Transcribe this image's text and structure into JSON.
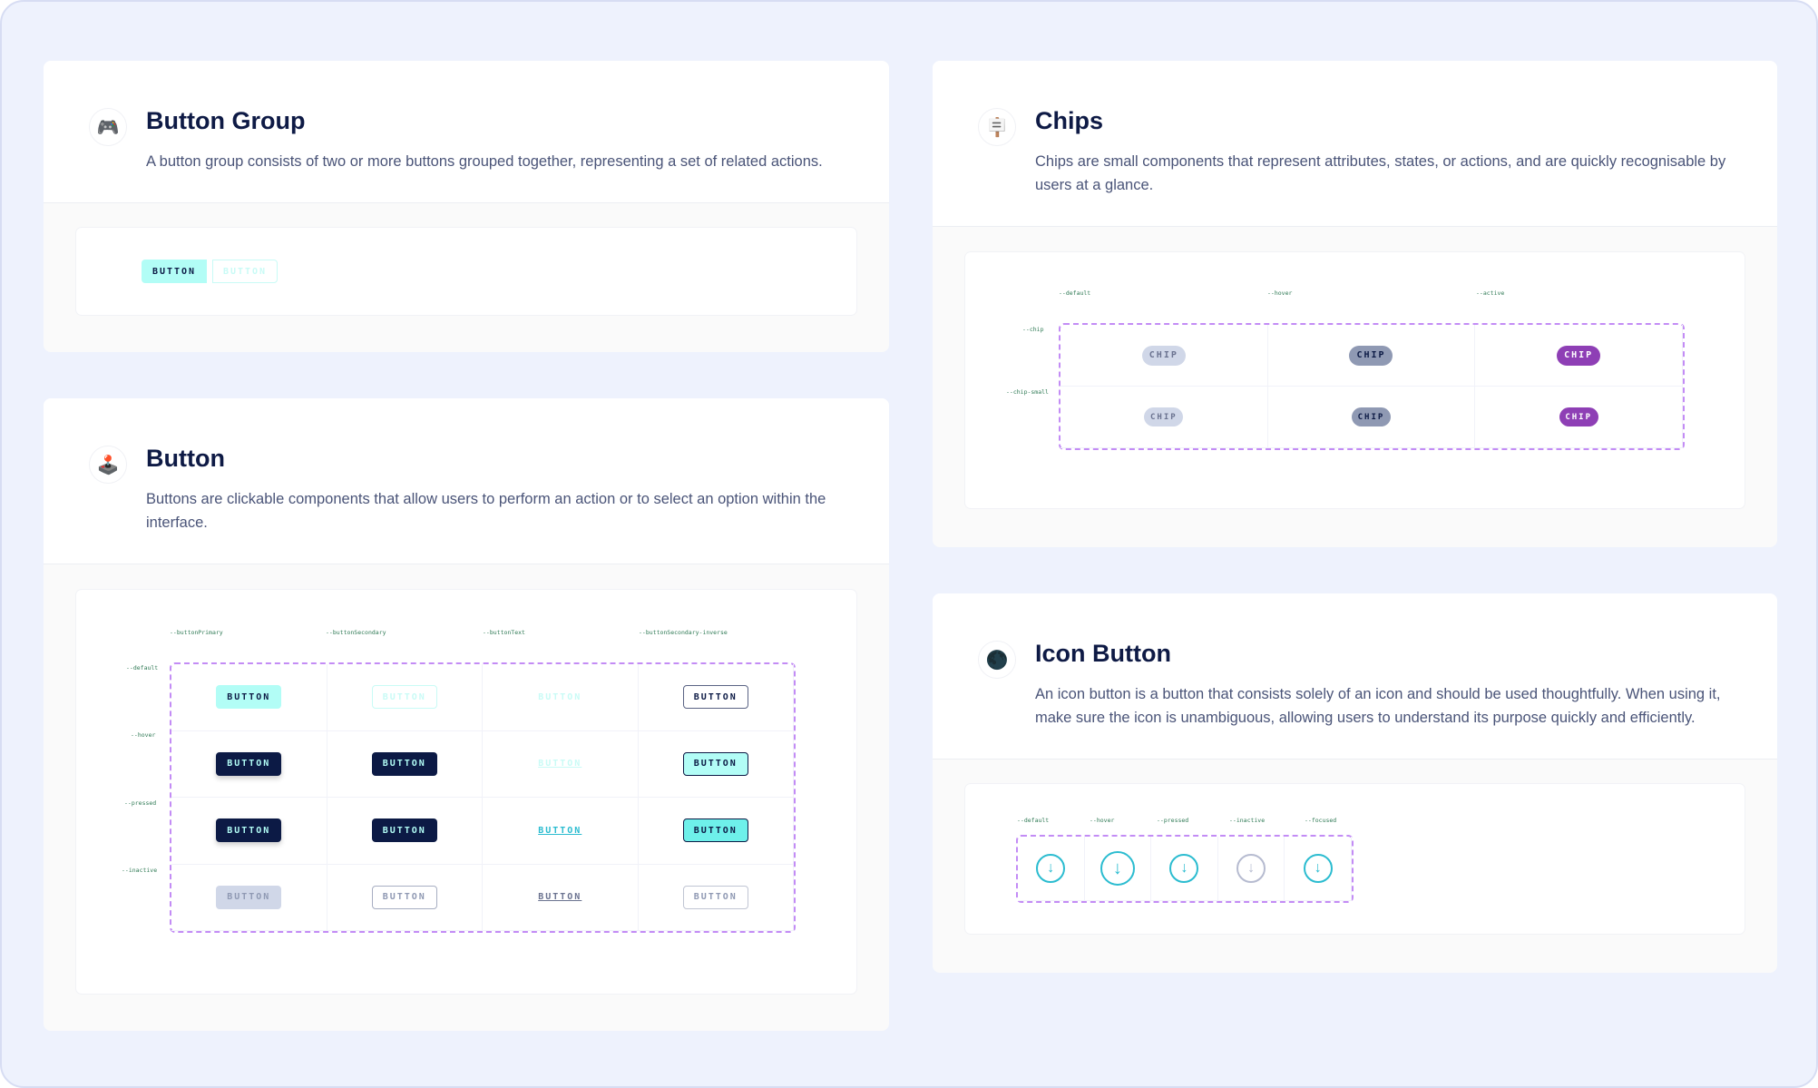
{
  "colors": {
    "background": "#eef2fd",
    "primary": "#b2fdf6",
    "dark": "#0c1a45",
    "chip_default": "#d0d7e8",
    "chip_hover": "#8f99b3",
    "chip_active": "#8e3fb5",
    "icon_teal": "#2bbcd0",
    "dashed": "#c38cf5"
  },
  "button_group": {
    "icon": "game-controller-icon",
    "title": "Button Group",
    "description": "A button group consists of two or more buttons grouped together, representing a set of related actions.",
    "buttons": [
      "BUTTON",
      "BUTTON"
    ]
  },
  "button": {
    "icon": "joystick-icon",
    "title": "Button",
    "description": "Buttons are clickable components that allow users to perform an action or to select an option within the interface.",
    "columns": [
      "--buttonPrimary",
      "--buttonSecondary",
      "--buttonText",
      "--buttonSecondary-inverse"
    ],
    "rows": [
      "--default",
      "--hover",
      "--pressed",
      "--inactive"
    ],
    "label": "BUTTON"
  },
  "chips": {
    "icon": "signpost-icon",
    "title": "Chips",
    "description": "Chips are small components that represent attributes, states, or actions, and are quickly recognisable by users at a glance.",
    "columns": [
      "--default",
      "--hover",
      "--active"
    ],
    "rows": [
      "--chip",
      "--chip-small"
    ],
    "label": "CHIP"
  },
  "icon_button": {
    "icon": "moon-icon",
    "title": "Icon Button",
    "description": "An icon button is a button that consists solely of an icon and should be used thoughtfully. When using it, make sure the icon is unambiguous, allowing users to understand its purpose quickly and efficiently.",
    "columns": [
      "--default",
      "--hover",
      "--pressed",
      "--inactive",
      "--focused"
    ],
    "glyph": "arrow-down-icon"
  }
}
